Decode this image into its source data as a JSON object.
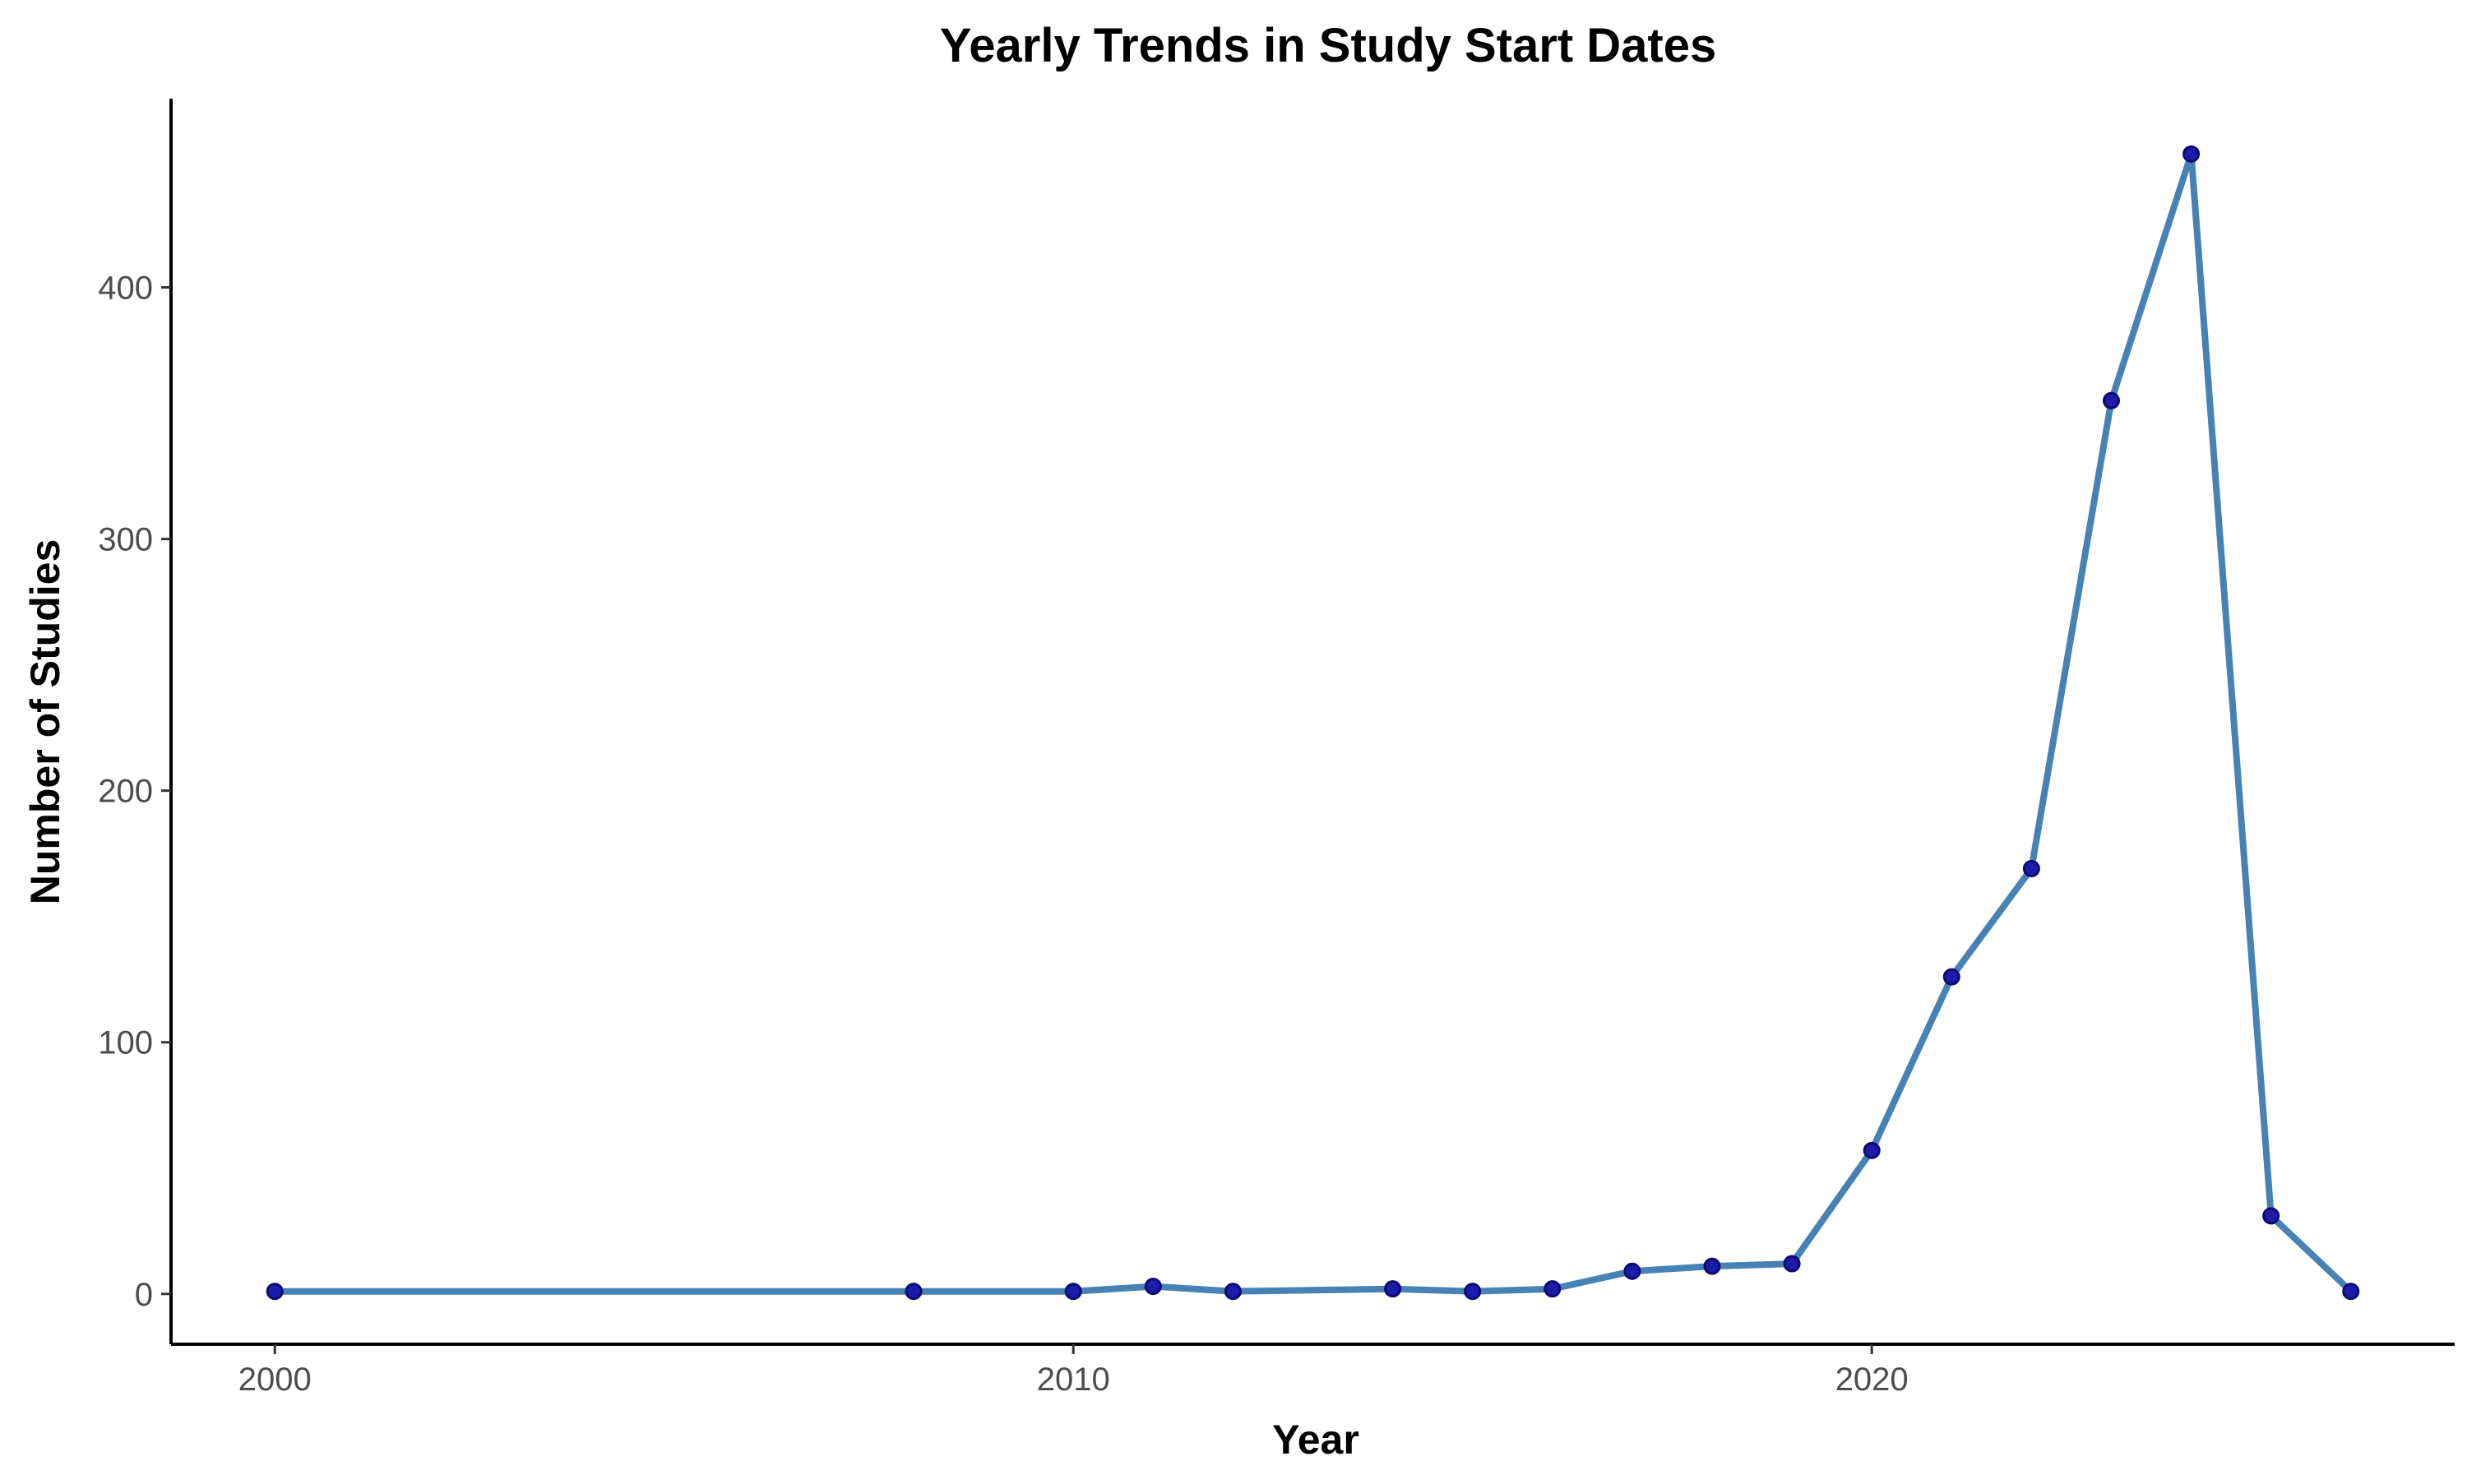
{
  "chart_data": {
    "type": "line",
    "title": "Yearly Trends in Study Start Dates",
    "xlabel": "Year",
    "ylabel": "Number of Studies",
    "xlim": [
      1998.7,
      2027.3
    ],
    "ylim": [
      -20,
      475
    ],
    "x_ticks": [
      2000,
      2010,
      2020
    ],
    "y_ticks": [
      0,
      100,
      200,
      300,
      400
    ],
    "grid": false,
    "legend": "none",
    "series": [
      {
        "x": [
          2000,
          2008,
          2010,
          2011,
          2012,
          2014,
          2015,
          2016,
          2017,
          2018,
          2019,
          2020,
          2021,
          2022,
          2023,
          2024,
          2025,
          2026
        ],
        "values": [
          1,
          1,
          1,
          3,
          1,
          2,
          1,
          2,
          9,
          11,
          12,
          57,
          126,
          169,
          355,
          453,
          31,
          1
        ]
      }
    ],
    "colors": {
      "line": "#4682b4",
      "point_fill": "#1c1caa",
      "point_stroke": "#0a0a70",
      "axis": "#000000",
      "tick_text": "#4d4d4d"
    }
  }
}
